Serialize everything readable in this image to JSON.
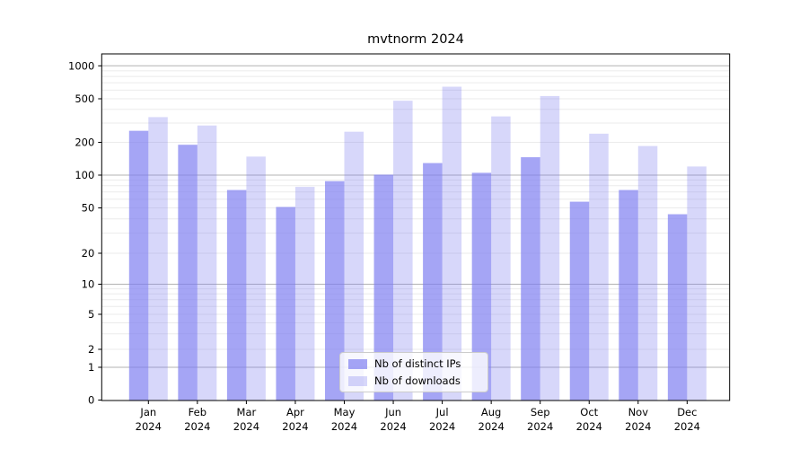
{
  "title": "mvtnorm 2024",
  "colors": {
    "distinct_ips": "rgba(123,123,240,0.68)",
    "downloads": "rgba(123,123,240,0.30)",
    "grid_major": "#b3b3b3",
    "grid_minor": "#ebebeb",
    "spine": "#000000"
  },
  "chart_data": {
    "type": "bar",
    "title": "mvtnorm 2024",
    "categories": [
      "Jan 2024",
      "Feb 2024",
      "Mar 2024",
      "Apr 2024",
      "May 2024",
      "Jun 2024",
      "Jul 2024",
      "Aug 2024",
      "Sep 2024",
      "Oct 2024",
      "Nov 2024",
      "Dec 2024"
    ],
    "series": [
      {
        "name": "Nb of distinct IPs",
        "values": [
          255,
          190,
          73,
          51,
          88,
          101,
          129,
          105,
          146,
          57,
          73,
          44
        ]
      },
      {
        "name": "Nb of downloads",
        "values": [
          340,
          285,
          148,
          78,
          250,
          480,
          645,
          345,
          530,
          240,
          185,
          120
        ]
      }
    ],
    "xlabel": "",
    "ylabel": "",
    "yscale": "symlog",
    "yticks": [
      0,
      1,
      2,
      5,
      10,
      20,
      50,
      100,
      200,
      500,
      1000
    ],
    "ylim": [
      0,
      1300
    ],
    "grid": true,
    "legend_position": "lower center"
  }
}
